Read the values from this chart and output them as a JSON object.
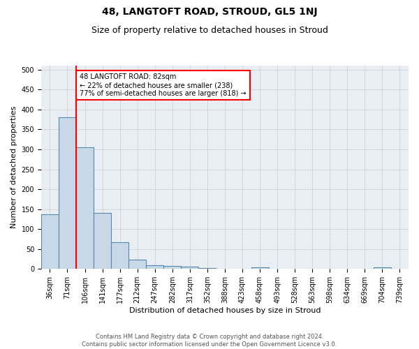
{
  "title": "48, LANGTOFT ROAD, STROUD, GL5 1NJ",
  "subtitle": "Size of property relative to detached houses in Stroud",
  "xlabel": "Distribution of detached houses by size in Stroud",
  "ylabel": "Number of detached properties",
  "categories": [
    "36sqm",
    "71sqm",
    "106sqm",
    "141sqm",
    "177sqm",
    "212sqm",
    "247sqm",
    "282sqm",
    "317sqm",
    "352sqm",
    "388sqm",
    "423sqm",
    "458sqm",
    "493sqm",
    "528sqm",
    "563sqm",
    "598sqm",
    "634sqm",
    "669sqm",
    "704sqm",
    "739sqm"
  ],
  "values": [
    137,
    380,
    305,
    140,
    68,
    24,
    10,
    7,
    5,
    3,
    0,
    0,
    4,
    0,
    0,
    0,
    0,
    0,
    0,
    4,
    0
  ],
  "bar_color": "#c8d8e8",
  "bar_edge_color": "#5588aa",
  "annotation_text": "48 LANGTOFT ROAD: 82sqm\n← 22% of detached houses are smaller (238)\n77% of semi-detached houses are larger (818) →",
  "annotation_box_color": "white",
  "annotation_box_edge_color": "red",
  "red_line_color": "red",
  "ylim": [
    0,
    510
  ],
  "yticks": [
    0,
    50,
    100,
    150,
    200,
    250,
    300,
    350,
    400,
    450,
    500
  ],
  "grid_color": "#cccccc",
  "bg_color": "#e8eef4",
  "footer": "Contains HM Land Registry data © Crown copyright and database right 2024.\nContains public sector information licensed under the Open Government Licence v3.0.",
  "title_fontsize": 10,
  "subtitle_fontsize": 9,
  "xlabel_fontsize": 8,
  "ylabel_fontsize": 8,
  "tick_fontsize": 7,
  "annotation_fontsize": 7,
  "footer_fontsize": 6
}
